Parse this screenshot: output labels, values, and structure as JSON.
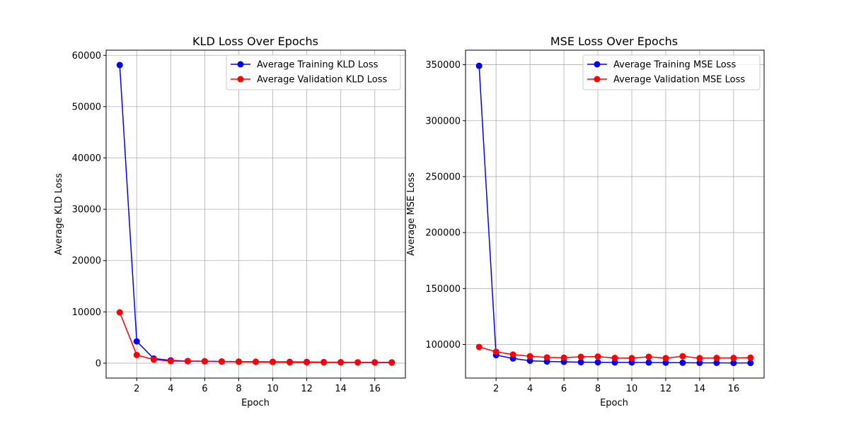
{
  "chart_data": [
    {
      "type": "line",
      "title": "KLD Loss Over Epochs",
      "xlabel": "Epoch",
      "ylabel": "Average KLD Loss",
      "xlim": [
        0.2,
        17.8
      ],
      "ylim": [
        -2900,
        61000
      ],
      "x_ticks": [
        2,
        4,
        6,
        8,
        10,
        12,
        14,
        16
      ],
      "y_ticks": [
        0,
        10000,
        20000,
        30000,
        40000,
        50000,
        60000
      ],
      "grid": true,
      "legend_position": "top-right",
      "x": [
        1,
        2,
        3,
        4,
        5,
        6,
        7,
        8,
        9,
        10,
        11,
        12,
        13,
        14,
        15,
        16,
        17
      ],
      "series": [
        {
          "name": "Average Training KLD Loss",
          "color": "#0000ff",
          "values": [
            58100,
            4250,
            900,
            550,
            420,
            380,
            330,
            300,
            280,
            260,
            250,
            240,
            200,
            180,
            170,
            160,
            150
          ]
        },
        {
          "name": "Average Validation KLD Loss",
          "color": "#ff0000",
          "values": [
            9900,
            1600,
            700,
            400,
            380,
            350,
            300,
            270,
            250,
            230,
            160,
            170,
            160,
            150,
            140,
            130,
            120
          ]
        }
      ]
    },
    {
      "type": "line",
      "title": "MSE Loss Over Epochs",
      "xlabel": "Epoch",
      "ylabel": "Average MSE Loss",
      "xlim": [
        0.2,
        17.8
      ],
      "ylim": [
        70000,
        363000
      ],
      "x_ticks": [
        2,
        4,
        6,
        8,
        10,
        12,
        14,
        16
      ],
      "y_ticks": [
        100000,
        150000,
        200000,
        250000,
        300000,
        350000
      ],
      "grid": true,
      "legend_position": "top-right",
      "x": [
        1,
        2,
        3,
        4,
        5,
        6,
        7,
        8,
        9,
        10,
        11,
        12,
        13,
        14,
        15,
        16,
        17
      ],
      "series": [
        {
          "name": "Average Training MSE Loss",
          "color": "#0000ff",
          "values": [
            349000,
            90500,
            87500,
            85500,
            84800,
            84500,
            84200,
            84100,
            84000,
            84000,
            83900,
            83800,
            83700,
            83600,
            83600,
            83500,
            83500
          ]
        },
        {
          "name": "Average Validation MSE Loss",
          "color": "#ff0000",
          "values": [
            97800,
            93500,
            91000,
            89500,
            88500,
            88200,
            89000,
            89200,
            88000,
            87800,
            89000,
            87800,
            89500,
            87800,
            88000,
            88000,
            88200
          ]
        }
      ]
    }
  ]
}
